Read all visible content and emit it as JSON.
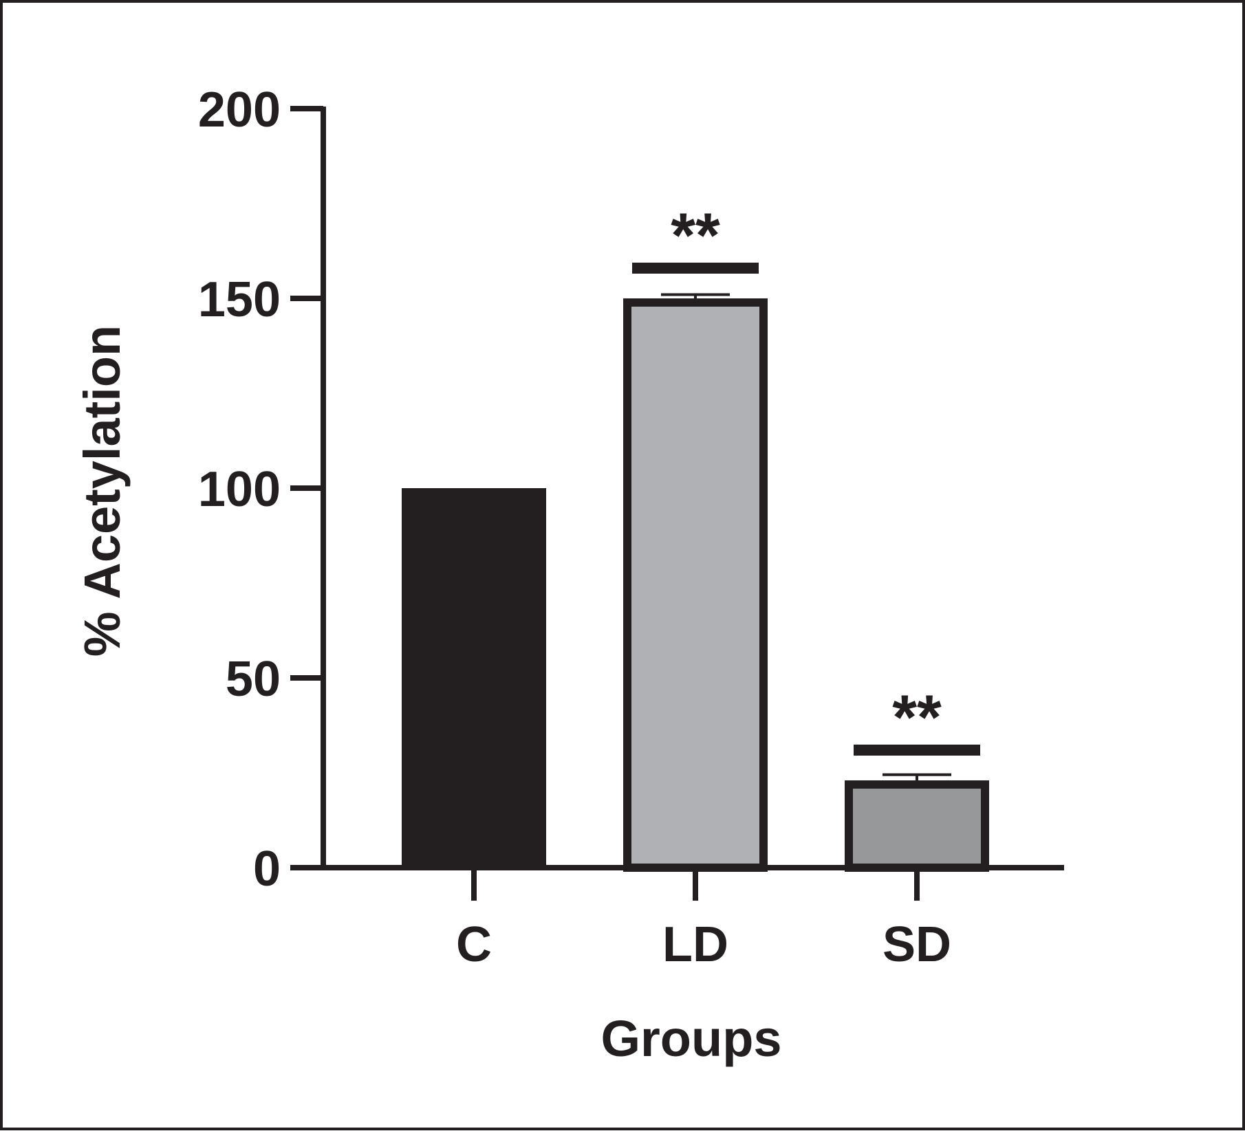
{
  "chart_data": {
    "type": "bar",
    "xlabel": "Groups",
    "ylabel": "% Acetylation",
    "ylim": [
      0,
      200
    ],
    "yticks": [
      0,
      50,
      100,
      150,
      200
    ],
    "categories": [
      "C",
      "LD",
      "SD"
    ],
    "values": [
      100,
      150,
      23
    ],
    "errors": [
      0,
      1,
      1.5
    ],
    "annotations": [
      "",
      "**",
      "**"
    ],
    "bar_colors": [
      "#231f20",
      "#b0b1b4",
      "#97989a"
    ],
    "outline_color": "#231f20",
    "grid": false,
    "legend": "none"
  }
}
